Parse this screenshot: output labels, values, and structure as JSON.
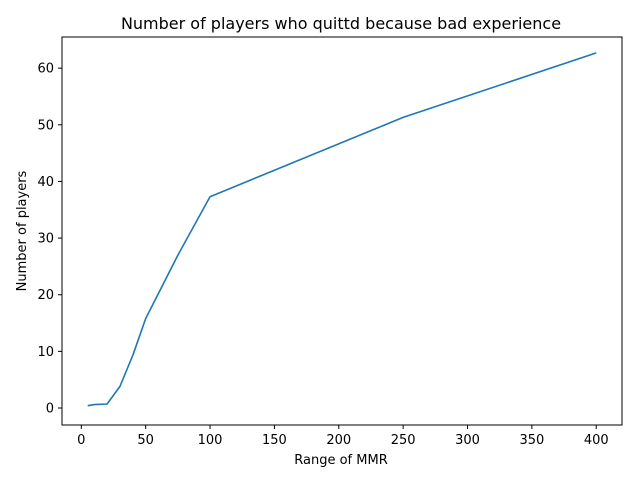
{
  "chart_data": {
    "type": "line",
    "title": "Number of players who quittd because bad experience",
    "xlabel": "Range of MMR",
    "ylabel": "Number of players",
    "xlim": [
      -15,
      420
    ],
    "ylim": [
      -3,
      65.5
    ],
    "xticks": [
      0,
      50,
      100,
      150,
      200,
      250,
      300,
      350,
      400
    ],
    "yticks": [
      0,
      10,
      20,
      30,
      40,
      50,
      60
    ],
    "grid": false,
    "series": [
      {
        "color": "#1f77b4",
        "x": [
          5,
          10,
          20,
          30,
          40,
          50,
          75,
          100,
          250,
          400
        ],
        "y": [
          0.4,
          0.6,
          0.7,
          3.8,
          9.3,
          15.8,
          27.0,
          37.3,
          51.3,
          62.7
        ]
      }
    ]
  }
}
